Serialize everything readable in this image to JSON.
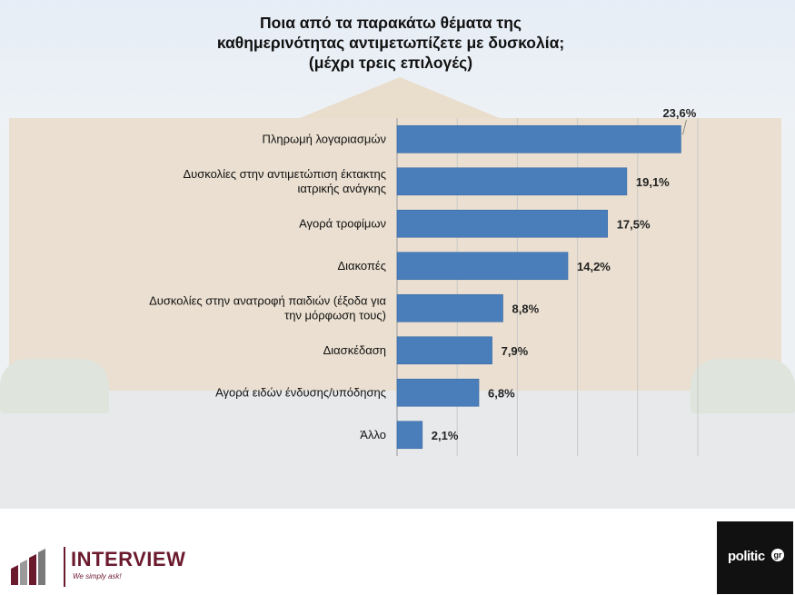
{
  "title_lines": [
    "Ποια από τα παρακάτω θέματα της",
    "καθημερινότητας αντιμετωπίζετε με δυσκολία;",
    "(μέχρι τρεις επιλογές)"
  ],
  "chart_data": {
    "type": "bar",
    "orientation": "horizontal",
    "title": "Ποια από τα παρακάτω θέματα της καθημερινότητας αντιμετωπίζετε με δυσκολία; (μέχρι τρεις επιλογές)",
    "categories": [
      [
        "Πληρωμή λογαριασμών"
      ],
      [
        "Δυσκολίες στην αντιμετώπιση έκτακτης",
        "ιατρικής ανάγκης"
      ],
      [
        "Αγορά τροφίμων"
      ],
      [
        "Διακοπές"
      ],
      [
        "Δυσκολίες στην ανατροφή παιδιών (έξοδα για",
        "την μόρφωση τους)"
      ],
      [
        "Διασκέδαση"
      ],
      [
        "Αγορά ειδών ένδυσης/υπόδησης"
      ],
      [
        "Άλλο"
      ]
    ],
    "values": [
      23.6,
      19.1,
      17.5,
      14.2,
      8.8,
      7.9,
      6.8,
      2.1
    ],
    "value_labels": [
      "23,6%",
      "19,1%",
      "17,5%",
      "14,2%",
      "8,8%",
      "7,9%",
      "6,8%",
      "2,1%"
    ],
    "xlim": [
      0,
      25
    ],
    "grid": true,
    "bar_color": "#4a7ebb"
  },
  "logos": {
    "left_brand": "INTERVIEW",
    "left_tagline": "We simply ask!",
    "right_brand": "politic",
    "right_mark": "gr"
  }
}
